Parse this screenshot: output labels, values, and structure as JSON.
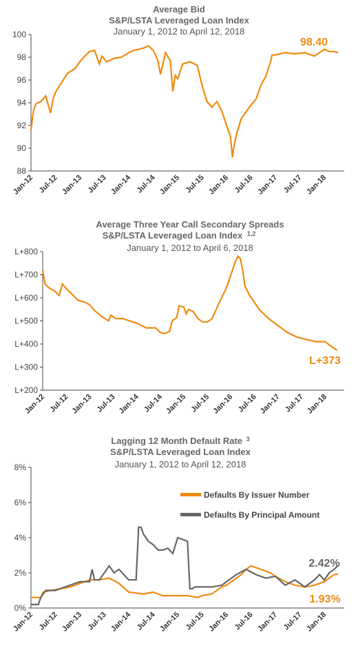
{
  "colors": {
    "orange": "#F08A10",
    "gray": "#666666"
  },
  "chart_data": [
    {
      "type": "line",
      "title": "Average Bid",
      "subtitle": "S&P/LSTA Leveraged Loan Index",
      "subtitle2": "January  1, 2012 to April 12, 2018",
      "end_label": "98.40",
      "ylim": [
        88,
        100
      ],
      "yticks": [
        "88",
        "90",
        "92",
        "94",
        "96",
        "98",
        "100"
      ],
      "xticks": [
        "Jan-12",
        "Jul-12",
        "Jan-13",
        "Jul-13",
        "Jan-14",
        "Jul-14",
        "Jan-15",
        "Jul-15",
        "Jan-16",
        "Jul-16",
        "Jan-17",
        "Jul-17",
        "Jan-18"
      ],
      "grid": false,
      "series": [
        {
          "x": [
            2012.0,
            2012.05,
            2012.1,
            2012.2,
            2012.3,
            2012.4,
            2012.45,
            2012.5,
            2012.6,
            2012.75,
            2012.9,
            2013.0,
            2013.1,
            2013.2,
            2013.3,
            2013.4,
            2013.45,
            2013.55,
            2013.7,
            2013.85,
            2014.0,
            2014.1,
            2014.2,
            2014.3,
            2014.4,
            2014.5,
            2014.55,
            2014.6,
            2014.65,
            2014.75,
            2014.85,
            2014.9,
            2014.95,
            2015.0,
            2015.1,
            2015.25,
            2015.4,
            2015.5,
            2015.6,
            2015.7,
            2015.8,
            2015.9,
            2016.0,
            2016.08,
            2016.12,
            2016.15,
            2016.2,
            2016.3,
            2016.4,
            2016.5,
            2016.6,
            2016.7,
            2016.8,
            2016.9,
            2016.93,
            2017.0,
            2017.2,
            2017.4,
            2017.6,
            2017.8,
            2017.9,
            2018.0,
            2018.1,
            2018.2,
            2018.28
          ],
          "values": [
            91.6,
            93.3,
            93.9,
            94.1,
            94.6,
            93.1,
            94.3,
            94.9,
            95.6,
            96.6,
            97.0,
            97.6,
            98.1,
            98.5,
            98.6,
            97.4,
            98.1,
            97.6,
            97.9,
            98.0,
            98.4,
            98.6,
            98.7,
            98.8,
            99.0,
            98.6,
            98.2,
            97.6,
            96.5,
            98.4,
            97.7,
            95.0,
            96.4,
            96.1,
            97.4,
            97.6,
            97.3,
            95.5,
            94.1,
            93.6,
            94.1,
            93.3,
            92.0,
            91.0,
            89.2,
            90.1,
            91.2,
            92.6,
            93.2,
            93.8,
            94.3,
            95.5,
            96.3,
            97.6,
            98.2,
            98.2,
            98.4,
            98.3,
            98.4,
            98.1,
            98.4,
            98.7,
            98.5,
            98.5,
            98.4
          ]
        }
      ]
    },
    {
      "type": "line",
      "title": "Average Three Year Call Secondary Spreads",
      "subtitle": "S&P/LSTA Leveraged Loan Index",
      "subtitle_sup": "1,2",
      "subtitle2": "January  1, 2012 to April 6, 2018",
      "end_label": "L+373",
      "ylim": [
        200,
        800
      ],
      "yticks": [
        "L+200",
        "L+300",
        "L+400",
        "L+500",
        "L+600",
        "L+700",
        "L+800"
      ],
      "xticks": [
        "Jan-12",
        "Jul-12",
        "Jan-13",
        "Jul-13",
        "Jan-14",
        "Jul-14",
        "Jan-15",
        "Jul-15",
        "Jan-16",
        "Jul-16",
        "Jan-17",
        "Jul-17",
        "Jan-18"
      ],
      "grid": false,
      "series": [
        {
          "x": [
            2012.0,
            2012.05,
            2012.15,
            2012.25,
            2012.35,
            2012.42,
            2012.5,
            2012.6,
            2012.75,
            2012.9,
            2013.0,
            2013.1,
            2013.25,
            2013.4,
            2013.45,
            2013.55,
            2013.7,
            2013.85,
            2014.0,
            2014.2,
            2014.4,
            2014.5,
            2014.6,
            2014.7,
            2014.75,
            2014.85,
            2014.9,
            2015.0,
            2015.05,
            2015.1,
            2015.2,
            2015.3,
            2015.4,
            2015.5,
            2015.6,
            2015.7,
            2015.8,
            2015.9,
            2016.0,
            2016.1,
            2016.15,
            2016.2,
            2016.25,
            2016.3,
            2016.4,
            2016.5,
            2016.6,
            2016.8,
            2017.0,
            2017.2,
            2017.4,
            2017.6,
            2017.8,
            2018.0,
            2018.1,
            2018.2,
            2018.26
          ],
          "values": [
            720,
            660,
            640,
            630,
            610,
            660,
            640,
            620,
            590,
            580,
            570,
            545,
            520,
            500,
            525,
            510,
            510,
            500,
            490,
            470,
            470,
            450,
            445,
            455,
            500,
            515,
            565,
            560,
            530,
            550,
            540,
            510,
            495,
            495,
            510,
            555,
            600,
            640,
            700,
            760,
            780,
            770,
            720,
            650,
            610,
            580,
            550,
            510,
            480,
            450,
            430,
            420,
            410,
            410,
            395,
            380,
            373
          ]
        }
      ]
    },
    {
      "type": "line",
      "title": "Lagging 12 Month Default Rate",
      "title_sup": "3",
      "subtitle": "S&P/LSTA Leveraged Loan Index",
      "subtitle2": "January  1, 2012 to April 12, 2018",
      "ylim": [
        0,
        8
      ],
      "yticks": [
        "0%",
        "2%",
        "4%",
        "6%",
        "8%"
      ],
      "xticks": [
        "Jan-12",
        "Jul-12",
        "Jan-13",
        "Jul-13",
        "Jan-14",
        "Jul-14",
        "Jan-15",
        "Jul-15",
        "Jan-16",
        "Jul-16",
        "Jan-17",
        "Jul-17",
        "Jan-18"
      ],
      "grid": false,
      "legend_position": "top-right",
      "series": [
        {
          "name": "Defaults By Issuer Number",
          "end_label": "1.93%",
          "x": [
            2012.0,
            2012.2,
            2012.25,
            2012.4,
            2012.6,
            2012.8,
            2013.0,
            2013.2,
            2013.4,
            2013.6,
            2013.8,
            2014.0,
            2014.3,
            2014.5,
            2014.7,
            2015.0,
            2015.2,
            2015.4,
            2015.5,
            2015.7,
            2015.9,
            2016.0,
            2016.2,
            2016.3,
            2016.4,
            2016.5,
            2016.7,
            2016.9,
            2017.0,
            2017.2,
            2017.4,
            2017.6,
            2017.8,
            2018.0,
            2018.2,
            2018.28
          ],
          "values": [
            0.6,
            0.6,
            0.9,
            1.0,
            1.1,
            1.2,
            1.4,
            1.6,
            1.6,
            1.7,
            1.4,
            0.9,
            0.8,
            0.9,
            0.7,
            0.7,
            0.7,
            0.6,
            0.7,
            0.8,
            1.2,
            1.3,
            1.7,
            1.9,
            2.2,
            2.4,
            2.2,
            2.0,
            1.8,
            1.5,
            1.3,
            1.2,
            1.3,
            1.5,
            1.9,
            1.93
          ]
        },
        {
          "name": "Defaults By Principal Amount",
          "end_label": "2.42%",
          "x": [
            2012.0,
            2012.15,
            2012.2,
            2012.3,
            2012.5,
            2012.8,
            2013.0,
            2013.2,
            2013.25,
            2013.3,
            2013.4,
            2013.6,
            2013.7,
            2013.8,
            2014.0,
            2014.15,
            2014.2,
            2014.25,
            2014.3,
            2014.4,
            2014.5,
            2014.6,
            2014.7,
            2014.8,
            2014.9,
            2015.0,
            2015.1,
            2015.2,
            2015.25,
            2015.3,
            2015.35,
            2015.5,
            2015.7,
            2015.9,
            2016.0,
            2016.2,
            2016.4,
            2016.6,
            2016.8,
            2017.0,
            2017.2,
            2017.4,
            2017.6,
            2017.8,
            2017.9,
            2018.0,
            2018.1,
            2018.2,
            2018.28
          ],
          "values": [
            0.2,
            0.2,
            0.6,
            1.0,
            1.0,
            1.3,
            1.5,
            1.5,
            2.2,
            1.6,
            1.6,
            2.4,
            2.0,
            2.2,
            1.6,
            1.6,
            4.6,
            4.6,
            4.2,
            3.8,
            3.6,
            3.3,
            3.3,
            3.4,
            3.1,
            4.0,
            3.9,
            3.8,
            1.1,
            1.1,
            1.2,
            1.2,
            1.2,
            1.3,
            1.5,
            1.9,
            2.2,
            1.9,
            1.7,
            1.8,
            1.3,
            1.6,
            1.2,
            1.6,
            1.9,
            1.6,
            2.0,
            2.2,
            2.42
          ]
        }
      ]
    }
  ]
}
